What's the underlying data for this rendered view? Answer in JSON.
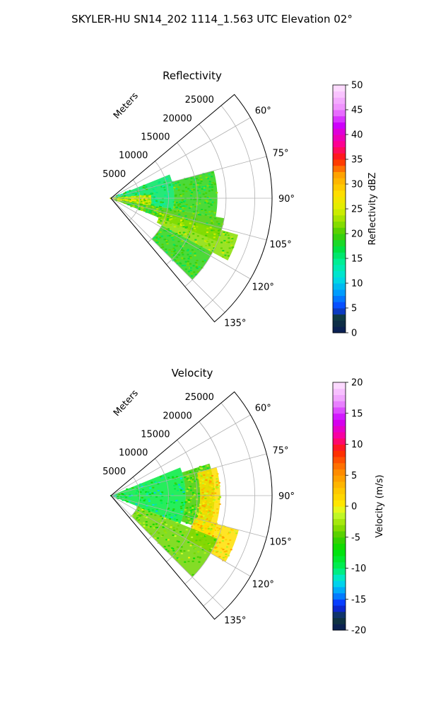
{
  "figure": {
    "title": "SKYLER-HU  SN14_202  1114_1.563 UTC Elevation 02°"
  },
  "chart_data": [
    {
      "type": "heatmap",
      "subtype": "polar-sector-ppi",
      "title": "Reflectivity",
      "range_label": "Meters",
      "range_ticks": [
        5000,
        10000,
        15000,
        20000,
        25000
      ],
      "range_tick_labels": [
        "5000",
        "10000",
        "15000",
        "20000",
        "25000"
      ],
      "range_max": 28000,
      "azimuth_range_deg": [
        50,
        140
      ],
      "azimuth_ticks": [
        60,
        75,
        90,
        105,
        120,
        135
      ],
      "azimuth_tick_labels": [
        "60°",
        "75°",
        "90°",
        "105°",
        "120°",
        "135°"
      ],
      "grid": true,
      "colorbar": {
        "label": "Reflectivity dBZ",
        "min": 0,
        "max": 50,
        "ticks": [
          0,
          5,
          10,
          15,
          20,
          25,
          30,
          35,
          40,
          45,
          50
        ],
        "tick_labels": [
          "0",
          "5",
          "10",
          "15",
          "20",
          "25",
          "30",
          "35",
          "40",
          "45",
          "50"
        ]
      },
      "echo_regions": [
        {
          "az": [
            68,
            100
          ],
          "r": [
            0,
            11000
          ],
          "value": 16
        },
        {
          "az": [
            75,
            100
          ],
          "r": [
            11000,
            18500
          ],
          "value": 19
        },
        {
          "az": [
            100,
            112
          ],
          "r": [
            0,
            20000
          ],
          "value": 20
        },
        {
          "az": [
            106,
            118
          ],
          "r": [
            9000,
            23000
          ],
          "value": 22
        },
        {
          "az": [
            118,
            135
          ],
          "r": [
            10000,
            20000
          ],
          "value": 19
        },
        {
          "az": [
            85,
            100
          ],
          "r": [
            0,
            7000
          ],
          "value": 24
        }
      ]
    },
    {
      "type": "heatmap",
      "subtype": "polar-sector-ppi",
      "title": "Velocity",
      "range_label": "Meters",
      "range_ticks": [
        5000,
        10000,
        15000,
        20000,
        25000
      ],
      "range_tick_labels": [
        "5000",
        "10000",
        "15000",
        "20000",
        "25000"
      ],
      "range_max": 28000,
      "azimuth_range_deg": [
        50,
        140
      ],
      "azimuth_ticks": [
        60,
        75,
        90,
        105,
        120,
        135
      ],
      "azimuth_tick_labels": [
        "60°",
        "75°",
        "90°",
        "105°",
        "120°",
        "135°"
      ],
      "grid": true,
      "colorbar": {
        "label": "Velocity (m/s)",
        "min": -20,
        "max": 20,
        "ticks": [
          -20,
          -15,
          -10,
          -5,
          0,
          5,
          10,
          15,
          20
        ],
        "tick_labels": [
          "-20",
          "-15",
          "-10",
          "-5",
          "0",
          "5",
          "10",
          "15",
          "20"
        ]
      },
      "echo_regions": [
        {
          "az": [
            68,
            112
          ],
          "r": [
            0,
            13000
          ],
          "value": -9
        },
        {
          "az": [
            72,
            110
          ],
          "r": [
            13000,
            18000
          ],
          "value": -5
        },
        {
          "az": [
            75,
            112
          ],
          "r": [
            15500,
            19000
          ],
          "value": 1
        },
        {
          "az": [
            105,
            120
          ],
          "r": [
            15000,
            23000
          ],
          "value": 1
        },
        {
          "az": [
            112,
            135
          ],
          "r": [
            5000,
            20000
          ],
          "value": -4
        }
      ]
    }
  ]
}
